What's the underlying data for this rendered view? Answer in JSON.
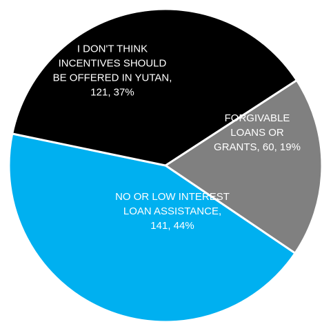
{
  "chart_data": {
    "type": "pie",
    "title": "",
    "categories": [
      "FORGIVABLE LOANS OR GRANTS",
      "NO OR LOW INTEREST LOAN ASSISTANCE",
      "I DON'T THINK INCENTIVES SHOULD BE OFFERED IN YUTAN"
    ],
    "values": [
      60,
      141,
      121
    ],
    "percents": [
      19,
      44,
      37
    ],
    "colors": [
      "#808080",
      "#00B0F0",
      "#000000"
    ],
    "label_colors": [
      "#ffffff",
      "#ffffff",
      "#ffffff"
    ],
    "labels": [
      [
        "FORGIVABLE",
        "LOANS OR",
        "GRANTS, 60, 19%"
      ],
      [
        "NO OR LOW INTEREST",
        "LOAN ASSISTANCE,",
        "141, 44%"
      ],
      [
        "I DON'T THINK",
        "INCENTIVES SHOULD",
        "BE OFFERED IN YUTAN,",
        "121, 37%"
      ]
    ],
    "legend": "none"
  }
}
